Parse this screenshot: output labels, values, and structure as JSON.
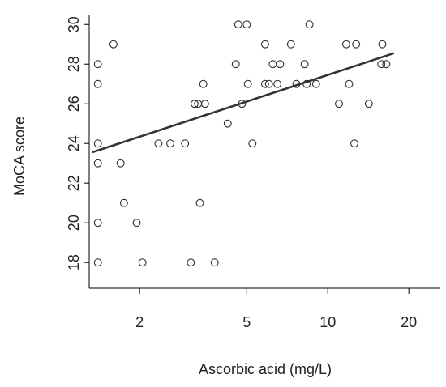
{
  "chart_data": {
    "type": "scatter",
    "title": "",
    "xlabel": "Ascorbic acid (mg/L)",
    "ylabel": "MoCA score",
    "x_scale": "log",
    "xlim": [
      1.3,
      26
    ],
    "ylim": [
      16.7,
      30.5
    ],
    "x_ticks": [
      2,
      5,
      10,
      20
    ],
    "y_ticks": [
      18,
      20,
      22,
      24,
      26,
      28,
      30
    ],
    "grid": false,
    "points": [
      {
        "x": 1.4,
        "y": 28
      },
      {
        "x": 1.4,
        "y": 27
      },
      {
        "x": 1.4,
        "y": 24
      },
      {
        "x": 1.4,
        "y": 23
      },
      {
        "x": 1.4,
        "y": 20
      },
      {
        "x": 1.4,
        "y": 18
      },
      {
        "x": 1.6,
        "y": 29
      },
      {
        "x": 1.7,
        "y": 23
      },
      {
        "x": 1.75,
        "y": 21
      },
      {
        "x": 1.95,
        "y": 20
      },
      {
        "x": 2.05,
        "y": 18
      },
      {
        "x": 2.35,
        "y": 24
      },
      {
        "x": 2.6,
        "y": 24
      },
      {
        "x": 2.95,
        "y": 24
      },
      {
        "x": 3.1,
        "y": 18
      },
      {
        "x": 3.2,
        "y": 26
      },
      {
        "x": 3.3,
        "y": 26
      },
      {
        "x": 3.35,
        "y": 21
      },
      {
        "x": 3.45,
        "y": 27
      },
      {
        "x": 3.5,
        "y": 26
      },
      {
        "x": 3.8,
        "y": 18
      },
      {
        "x": 4.25,
        "y": 25
      },
      {
        "x": 4.55,
        "y": 28
      },
      {
        "x": 4.65,
        "y": 30
      },
      {
        "x": 4.8,
        "y": 26
      },
      {
        "x": 5.0,
        "y": 30
      },
      {
        "x": 5.05,
        "y": 27
      },
      {
        "x": 5.25,
        "y": 24
      },
      {
        "x": 5.85,
        "y": 29
      },
      {
        "x": 5.85,
        "y": 27
      },
      {
        "x": 6.05,
        "y": 27
      },
      {
        "x": 6.25,
        "y": 28
      },
      {
        "x": 6.5,
        "y": 27
      },
      {
        "x": 6.65,
        "y": 28
      },
      {
        "x": 7.3,
        "y": 29
      },
      {
        "x": 7.65,
        "y": 27
      },
      {
        "x": 8.2,
        "y": 28
      },
      {
        "x": 8.35,
        "y": 27
      },
      {
        "x": 8.55,
        "y": 30
      },
      {
        "x": 9.05,
        "y": 27
      },
      {
        "x": 11.0,
        "y": 26
      },
      {
        "x": 11.7,
        "y": 29
      },
      {
        "x": 12.0,
        "y": 27
      },
      {
        "x": 12.55,
        "y": 24
      },
      {
        "x": 12.75,
        "y": 29
      },
      {
        "x": 14.2,
        "y": 26
      },
      {
        "x": 15.8,
        "y": 28
      },
      {
        "x": 15.95,
        "y": 29
      },
      {
        "x": 16.5,
        "y": 28
      }
    ],
    "fit_line": {
      "x": [
        1.33,
        17.6
      ],
      "y": [
        23.55,
        28.55
      ]
    }
  }
}
